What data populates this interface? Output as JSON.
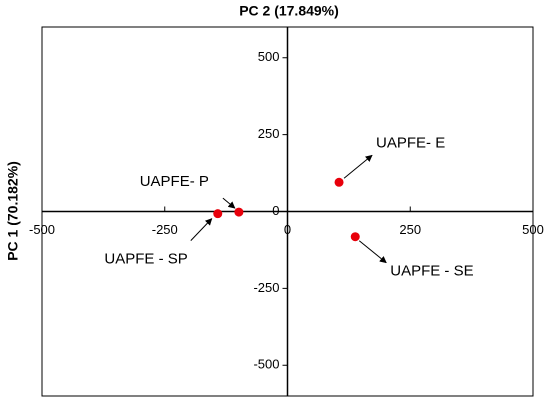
{
  "chart_data": {
    "type": "scatter",
    "title": "PC 2 (17.849%)",
    "y_label": "PC 1 (70.182%)",
    "labels": [
      "UAPFE- E",
      "UAPFE - SE",
      "UAPFE- P",
      "UAPFE - SP"
    ],
    "x": [
      105,
      138,
      -99,
      -142
    ],
    "series": [
      {
        "color": "#e8000b",
        "values": [
          95,
          -82,
          -2,
          -7
        ]
      }
    ],
    "xlim": [
      -500,
      500
    ],
    "ylim": [
      -600,
      600
    ],
    "xticks": [
      -500,
      -250,
      0,
      250,
      500
    ],
    "yticks": [
      -500,
      -250,
      0,
      250,
      500
    ]
  }
}
